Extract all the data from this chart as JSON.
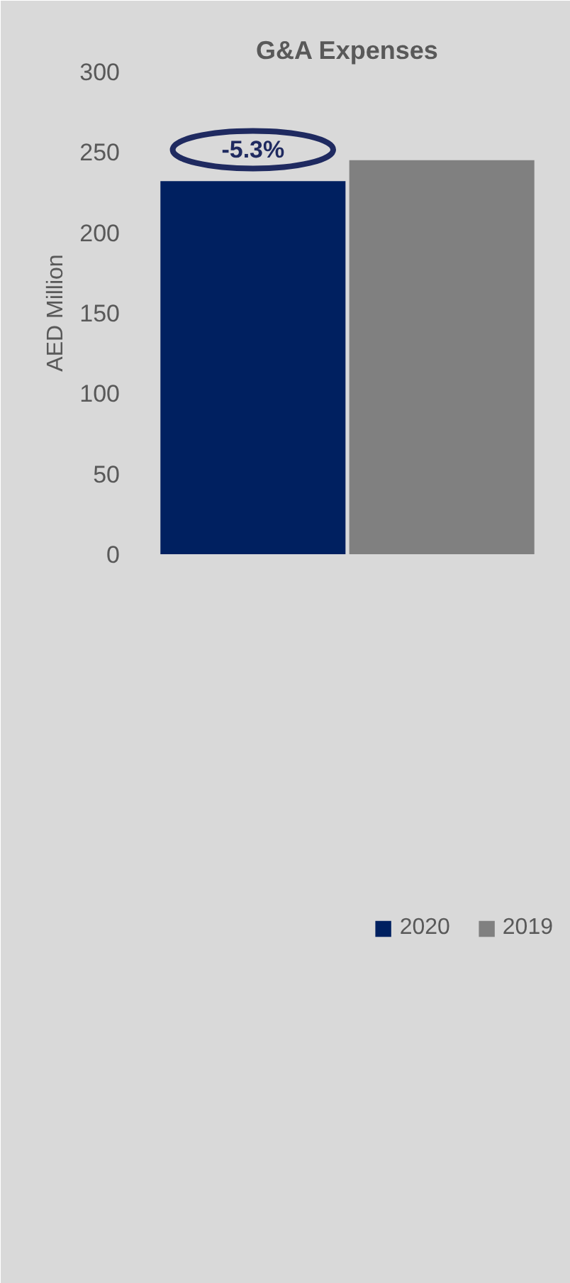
{
  "chart_data": {
    "type": "bar",
    "title": "G&A Expenses",
    "ylabel": "AED Million",
    "categories": [
      null
    ],
    "series": [
      {
        "name": "2020",
        "color": "#002060",
        "values": [
          232
        ]
      },
      {
        "name": "2019",
        "color": "#808080",
        "values": [
          245
        ]
      }
    ],
    "ylim": [
      0,
      300
    ],
    "yticks": [
      0,
      50,
      100,
      150,
      200,
      250,
      300
    ],
    "grid": false,
    "legend": "bottom",
    "tick_labels": "y",
    "annotations": [
      "-5.3%"
    ]
  }
}
